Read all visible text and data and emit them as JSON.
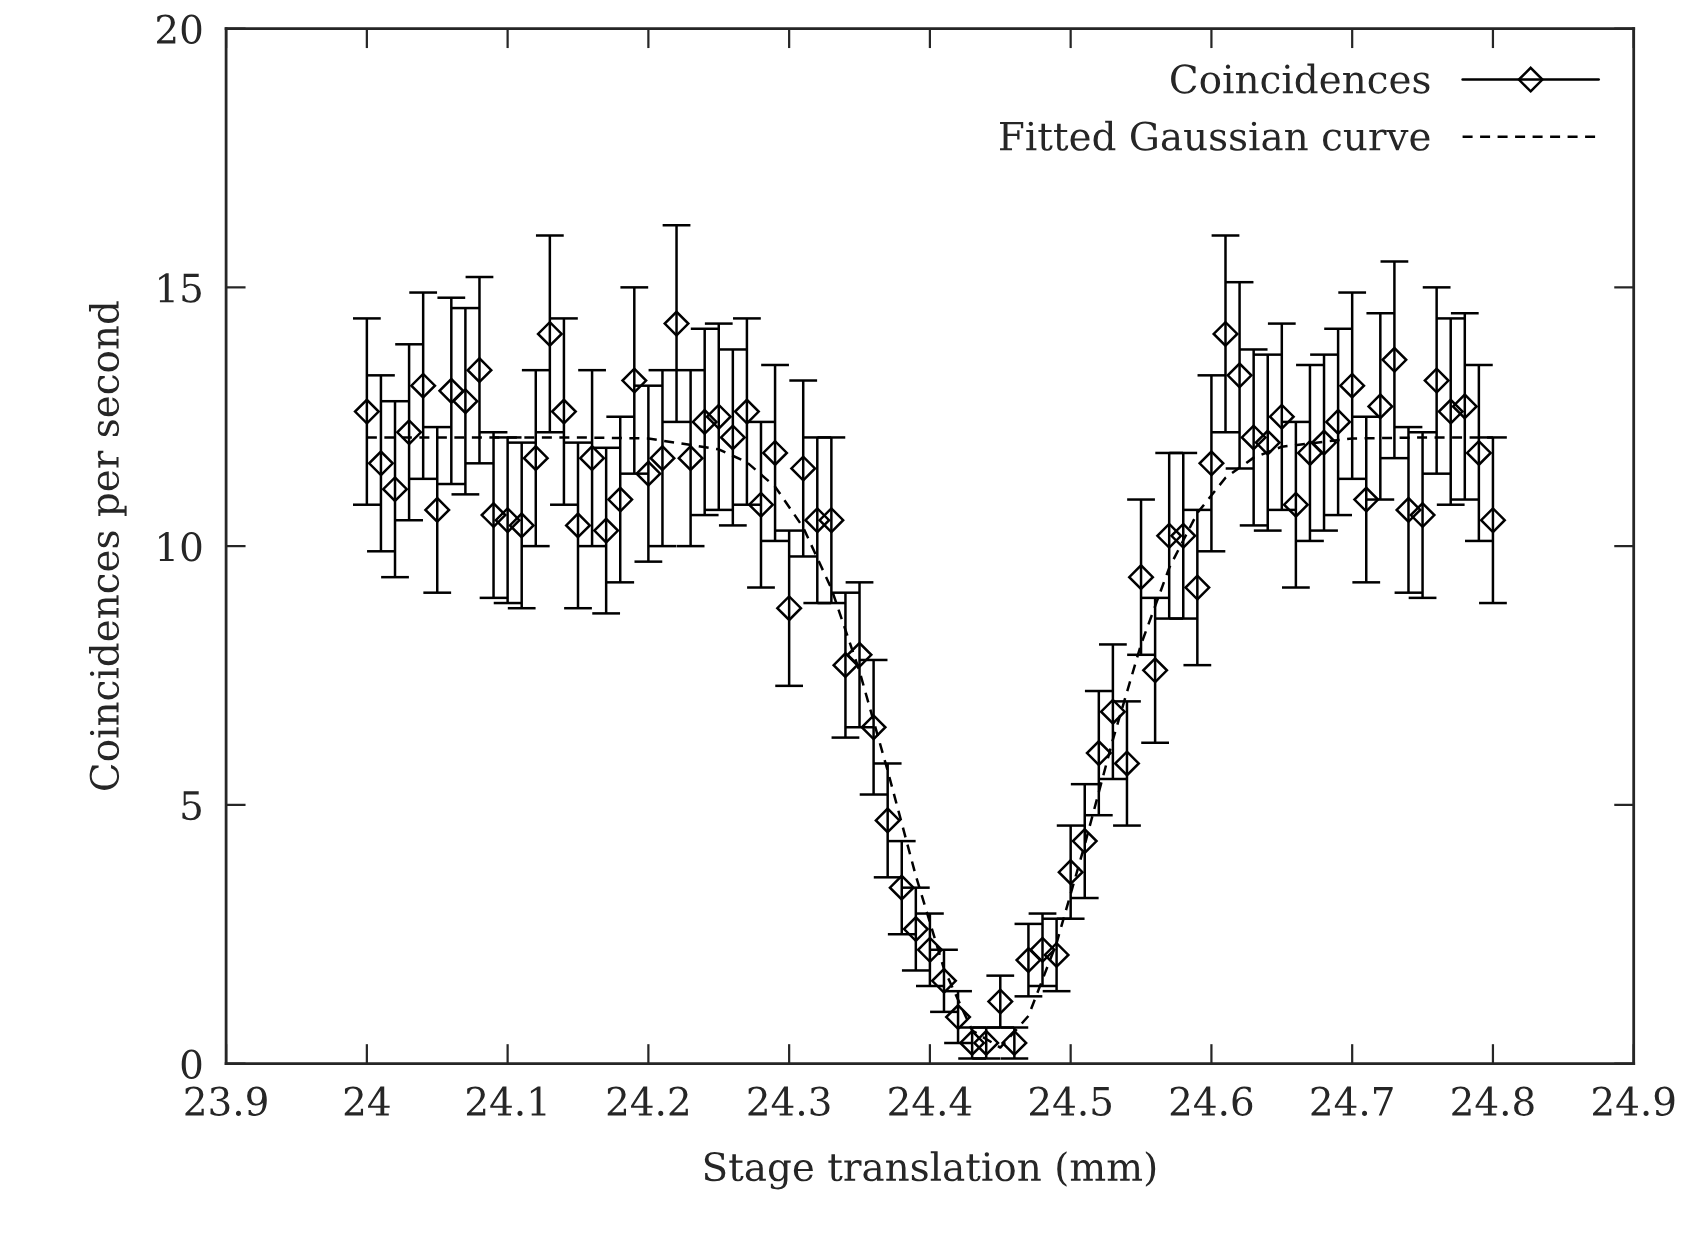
{
  "chart_data": {
    "type": "scatter",
    "xlabel": "Stage translation (mm)",
    "ylabel": "Coincidences per second",
    "xlim": [
      23.9,
      24.9
    ],
    "xticks": [
      23.9,
      24,
      24.1,
      24.2,
      24.3,
      24.4,
      24.5,
      24.6,
      24.7,
      24.8,
      24.9
    ],
    "ylim": [
      0,
      20
    ],
    "yticks": [
      0,
      5,
      10,
      15,
      20
    ],
    "grid": false,
    "legend": "top right",
    "series": [
      {
        "name": "Coincidences",
        "marker": "diamond",
        "color": "#000000",
        "x": [
          24.0,
          24.01,
          24.02,
          24.03,
          24.04,
          24.05,
          24.06,
          24.07,
          24.08,
          24.09,
          24.1,
          24.11,
          24.12,
          24.13,
          24.14,
          24.15,
          24.16,
          24.17,
          24.18,
          24.19,
          24.2,
          24.21,
          24.22,
          24.23,
          24.24,
          24.25,
          24.26,
          24.27,
          24.28,
          24.29,
          24.3,
          24.31,
          24.32,
          24.33,
          24.34,
          24.35,
          24.36,
          24.37,
          24.38,
          24.39,
          24.4,
          24.41,
          24.42,
          24.43,
          24.44,
          24.45,
          24.46,
          24.47,
          24.48,
          24.49,
          24.5,
          24.51,
          24.52,
          24.53,
          24.54,
          24.55,
          24.56,
          24.57,
          24.58,
          24.59,
          24.6,
          24.61,
          24.62,
          24.63,
          24.64,
          24.65,
          24.66,
          24.67,
          24.68,
          24.69,
          24.7,
          24.71,
          24.72,
          24.73,
          24.74,
          24.75,
          24.76,
          24.77,
          24.78,
          24.79,
          24.8
        ],
        "values": [
          12.6,
          11.6,
          11.1,
          12.2,
          13.1,
          10.7,
          13.0,
          12.8,
          13.4,
          10.6,
          10.5,
          10.4,
          11.7,
          14.1,
          12.6,
          10.4,
          11.7,
          10.3,
          10.9,
          13.2,
          11.4,
          11.7,
          14.3,
          11.7,
          12.4,
          12.5,
          12.1,
          12.6,
          10.8,
          11.8,
          8.8,
          11.5,
          10.5,
          10.5,
          7.7,
          7.9,
          6.5,
          4.7,
          3.4,
          2.6,
          2.2,
          1.6,
          0.9,
          0.4,
          0.4,
          1.2,
          0.4,
          2.0,
          2.2,
          2.1,
          3.7,
          4.3,
          6.0,
          6.8,
          5.8,
          9.4,
          7.6,
          10.2,
          10.2,
          9.2,
          11.6,
          14.1,
          13.3,
          12.1,
          12.0,
          12.5,
          10.8,
          11.8,
          12.0,
          12.4,
          13.1,
          10.9,
          12.7,
          13.6,
          10.7,
          10.6,
          13.2,
          12.6,
          12.7,
          11.8,
          10.5
        ],
        "errors": [
          1.8,
          1.7,
          1.7,
          1.7,
          1.8,
          1.6,
          1.8,
          1.8,
          1.8,
          1.6,
          1.6,
          1.6,
          1.7,
          1.9,
          1.8,
          1.6,
          1.7,
          1.6,
          1.6,
          1.8,
          1.7,
          1.7,
          1.9,
          1.7,
          1.8,
          1.8,
          1.7,
          1.8,
          1.6,
          1.7,
          1.5,
          1.7,
          1.6,
          1.6,
          1.4,
          1.4,
          1.3,
          1.1,
          0.9,
          0.8,
          0.7,
          0.6,
          0.5,
          0.3,
          0.3,
          0.5,
          0.3,
          0.7,
          0.7,
          0.7,
          0.9,
          1.1,
          1.2,
          1.3,
          1.2,
          1.5,
          1.4,
          1.6,
          1.6,
          1.5,
          1.7,
          1.9,
          1.8,
          1.7,
          1.7,
          1.8,
          1.6,
          1.7,
          1.7,
          1.8,
          1.8,
          1.6,
          1.8,
          1.9,
          1.6,
          1.6,
          1.8,
          1.8,
          1.8,
          1.7,
          1.6
        ],
        "line_style": "none"
      },
      {
        "name": "Fitted Gaussian curve",
        "type": "line",
        "line_style": "dashed",
        "color": "#000000",
        "x": [
          24.0,
          24.1,
          24.15,
          24.2,
          24.25,
          24.27,
          24.29,
          24.31,
          24.33,
          24.35,
          24.37,
          24.39,
          24.41,
          24.43,
          24.45,
          24.47,
          24.49,
          24.51,
          24.53,
          24.55,
          24.57,
          24.59,
          24.61,
          24.63,
          24.65,
          24.7,
          24.75,
          24.8
        ],
        "values": [
          12.1,
          12.1,
          12.1,
          12.08,
          11.87,
          11.62,
          11.15,
          10.36,
          9.18,
          7.58,
          5.66,
          3.63,
          1.83,
          0.64,
          0.31,
          0.92,
          2.33,
          4.23,
          6.26,
          8.1,
          9.58,
          10.64,
          11.32,
          11.71,
          11.92,
          12.08,
          12.1,
          12.1
        ]
      }
    ]
  }
}
